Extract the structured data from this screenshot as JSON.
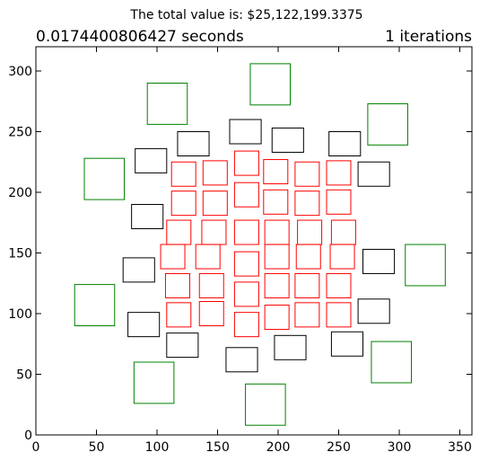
{
  "chart_data": {
    "type": "scatter",
    "mark": "rectangle",
    "suptitle": "The total value is: $25,122,199.3375",
    "left_title": "0.0174400806427 seconds",
    "right_title": "1 iterations",
    "xlim": [
      0,
      360
    ],
    "ylim": [
      0,
      320
    ],
    "xticks": [
      "0",
      "50",
      "100",
      "150",
      "200",
      "250",
      "300",
      "350"
    ],
    "yticks": [
      "0",
      "50",
      "100",
      "150",
      "200",
      "250",
      "300"
    ],
    "grid": false,
    "legend": "none",
    "colors": {
      "red": "#ff0000",
      "black": "#000000",
      "green": "#008000"
    },
    "series": [
      {
        "color": "red",
        "rects": [
          [
            112,
            205,
            20,
            20
          ],
          [
            138,
            206,
            20,
            20
          ],
          [
            164,
            214,
            20,
            20
          ],
          [
            188,
            207,
            20,
            20
          ],
          [
            214,
            205,
            20,
            20
          ],
          [
            240,
            206,
            20,
            20
          ],
          [
            112,
            181,
            20,
            20
          ],
          [
            138,
            181,
            20,
            20
          ],
          [
            164,
            188,
            20,
            20
          ],
          [
            188,
            182,
            20,
            20
          ],
          [
            214,
            181,
            20,
            20
          ],
          [
            240,
            182,
            20,
            20
          ],
          [
            108,
            157,
            20,
            20
          ],
          [
            137,
            157,
            20,
            20
          ],
          [
            164,
            157,
            20,
            20
          ],
          [
            189,
            157,
            20,
            20
          ],
          [
            216,
            157,
            20,
            20
          ],
          [
            244,
            157,
            20,
            20
          ],
          [
            103,
            137,
            20,
            20
          ],
          [
            132,
            137,
            20,
            20
          ],
          [
            164,
            131,
            20,
            20
          ],
          [
            189,
            137,
            20,
            20
          ],
          [
            215,
            137,
            20,
            20
          ],
          [
            243,
            137,
            20,
            20
          ],
          [
            107,
            113,
            20,
            20
          ],
          [
            135,
            113,
            20,
            20
          ],
          [
            164,
            106,
            20,
            20
          ],
          [
            189,
            113,
            20,
            20
          ],
          [
            214,
            113,
            20,
            20
          ],
          [
            240,
            113,
            20,
            20
          ],
          [
            108,
            89,
            20,
            20
          ],
          [
            135,
            90,
            20,
            20
          ],
          [
            164,
            81,
            20,
            20
          ],
          [
            189,
            87,
            20,
            20
          ],
          [
            214,
            89,
            20,
            20
          ],
          [
            240,
            89,
            20,
            20
          ]
        ]
      },
      {
        "color": "black",
        "rects": [
          [
            82,
            216,
            26,
            20
          ],
          [
            117,
            230,
            26,
            20
          ],
          [
            160,
            240,
            26,
            20
          ],
          [
            195,
            233,
            26,
            20
          ],
          [
            242,
            230,
            26,
            20
          ],
          [
            79,
            170,
            26,
            20
          ],
          [
            266,
            205,
            26,
            20
          ],
          [
            72,
            126,
            26,
            20
          ],
          [
            270,
            133,
            26,
            20
          ],
          [
            76,
            81,
            26,
            20
          ],
          [
            266,
            92,
            26,
            20
          ],
          [
            108,
            64,
            26,
            20
          ],
          [
            197,
            62,
            26,
            20
          ],
          [
            244,
            65,
            26,
            20
          ],
          [
            157,
            52,
            26,
            20
          ]
        ]
      },
      {
        "color": "green",
        "rects": [
          [
            92,
            256,
            33,
            34
          ],
          [
            177,
            272,
            33,
            34
          ],
          [
            274,
            239,
            33,
            34
          ],
          [
            40,
            194,
            33,
            34
          ],
          [
            305,
            123,
            33,
            34
          ],
          [
            32,
            90,
            33,
            34
          ],
          [
            277,
            43,
            33,
            34
          ],
          [
            81,
            26,
            33,
            34
          ],
          [
            173,
            8,
            33,
            34
          ]
        ]
      }
    ]
  }
}
